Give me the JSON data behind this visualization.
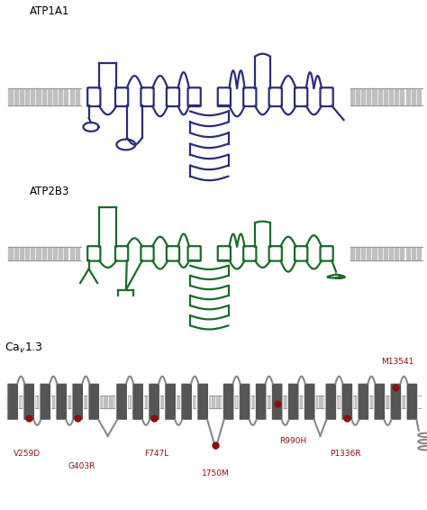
{
  "title1": "ATP1A1",
  "title2": "ATP2B3",
  "title3": "Ca$_v$1.3",
  "color1": "#2b2d7a",
  "color2": "#1a6b2a",
  "color3": "#555555",
  "lw1": 1.6,
  "lw2": 1.6,
  "lw3": 1.5,
  "mem_color": "#c0c0c0",
  "mem_border": "#999999",
  "dot_color": "#8b1010",
  "mut_labels": [
    "V259D",
    "G403R",
    "F747L",
    "1750M",
    "R990H",
    "P1336R",
    "M13541"
  ]
}
